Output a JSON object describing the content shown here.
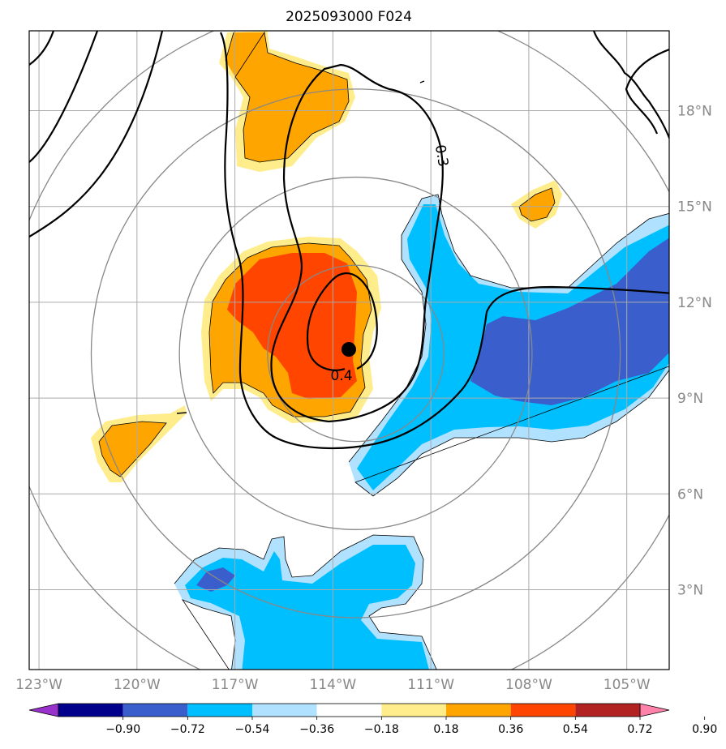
{
  "title": "2025093000 F024",
  "chart_data": {
    "type": "map",
    "title": "2025093000 F024",
    "lon_range": [
      -123.3,
      -103.7
    ],
    "lat_range": [
      0.5,
      20.5
    ],
    "lon_ticks": [
      {
        "value": -123,
        "label": "123°W"
      },
      {
        "value": -120,
        "label": "120°W"
      },
      {
        "value": -117,
        "label": "117°W"
      },
      {
        "value": -114,
        "label": "114°W"
      },
      {
        "value": -111,
        "label": "111°W"
      },
      {
        "value": -108,
        "label": "108°W"
      },
      {
        "value": -105,
        "label": "105°W"
      }
    ],
    "lat_ticks": [
      {
        "value": 3,
        "label": "3°N"
      },
      {
        "value": 6,
        "label": "6°N"
      },
      {
        "value": 9,
        "label": "9°N"
      },
      {
        "value": 12,
        "label": "12°N"
      },
      {
        "value": 15,
        "label": "15°N"
      },
      {
        "value": 18,
        "label": "18°N"
      }
    ],
    "storm_center": {
      "lon": -113.3,
      "lat": 10.4
    },
    "range_rings_deg": [
      2.7,
      5.4,
      8.1,
      10.8
    ],
    "contour_labels": [
      {
        "text": "0.3",
        "lon": -110.4,
        "lat": 16.0
      },
      {
        "text": "0.4",
        "lon": -113.8,
        "lat": 9.7
      }
    ],
    "colorbar": {
      "ticks": [
        "−0.90",
        "−0.72",
        "−0.54",
        "−0.36",
        "−0.18",
        "0.18",
        "0.36",
        "0.54",
        "0.72",
        "0.90"
      ],
      "colors": [
        "#9932cc",
        "#00008b",
        "#3a5fcd",
        "#00bfff",
        "#b0e2ff",
        "#ffffff",
        "#ffec8b",
        "#ffa500",
        "#ff4500",
        "#b22222",
        "#ff82ab"
      ]
    }
  }
}
